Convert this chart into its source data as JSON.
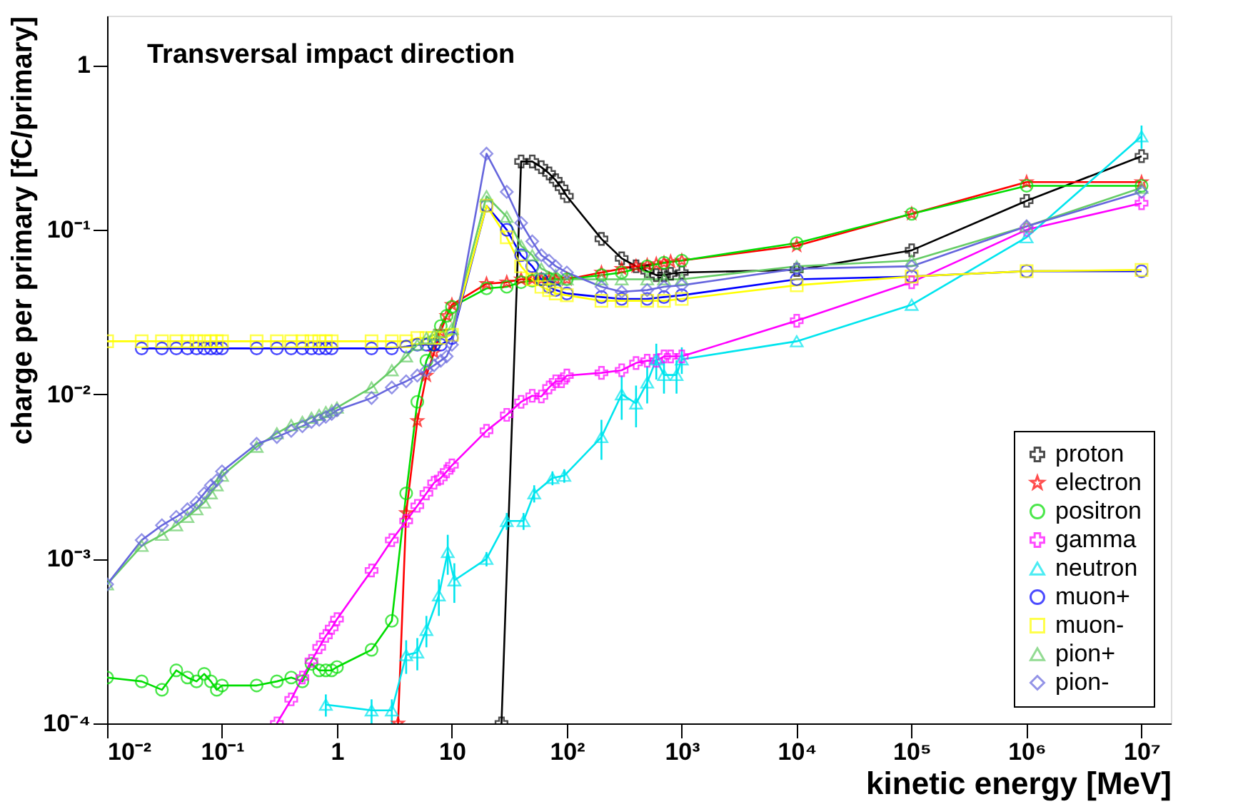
{
  "chart_data": {
    "type": "line",
    "xlabel": "kinetic energy [MeV]",
    "ylabel": "charge per primary [fC/primary]",
    "log": "xy",
    "grid": false,
    "legend": "bottom right",
    "annotations": [
      "Transversal impact direction"
    ],
    "xlim": [
      0.01,
      18000000
    ],
    "ylim": [
      0.0001,
      2
    ],
    "xticks": [
      {
        "value": 0.01,
        "label": "10⁻²"
      },
      {
        "value": 0.1,
        "label": "10⁻¹"
      },
      1,
      10,
      {
        "value": 100,
        "label": "10²"
      },
      {
        "value": 1000,
        "label": "10³"
      },
      {
        "value": 10000,
        "label": "10⁴"
      },
      {
        "value": 100000,
        "label": "10⁵"
      },
      {
        "value": 1000000,
        "label": "10⁶"
      },
      {
        "value": 10000000,
        "label": "10⁷"
      }
    ],
    "yticks": [
      {
        "value": 0.0001,
        "label": "10⁻⁴"
      },
      {
        "value": 0.001,
        "label": "10⁻³"
      },
      {
        "value": 0.01,
        "label": "10⁻²"
      },
      {
        "value": 0.1,
        "label": "10⁻¹"
      },
      1
    ],
    "series": [
      {
        "name": "proton",
        "color": "#000000",
        "marker": "cross",
        "x": [
          27,
          40,
          50,
          60,
          70,
          80,
          90,
          100,
          200,
          300,
          400,
          500,
          600,
          700,
          800,
          1000,
          10000,
          100000,
          1000000,
          10000000
        ],
        "values": [
          0.0001,
          0.26,
          0.26,
          0.24,
          0.22,
          0.2,
          0.18,
          0.16,
          0.088,
          0.067,
          0.06,
          0.056,
          0.053,
          0.053,
          0.054,
          0.055,
          0.057,
          0.075,
          0.15,
          0.28
        ]
      },
      {
        "name": "electron",
        "color": "#ff0000",
        "marker": "star",
        "x": [
          3.4,
          4,
          5,
          6,
          7,
          8,
          9,
          10,
          20,
          30,
          40,
          50,
          60,
          70,
          80,
          100,
          200,
          300,
          400,
          500,
          600,
          700,
          800,
          1000,
          10000,
          100000,
          1000000,
          10000000
        ],
        "values": [
          0.0001,
          0.0019,
          0.0069,
          0.013,
          0.018,
          0.024,
          0.03,
          0.035,
          0.047,
          0.048,
          0.05,
          0.05,
          0.05,
          0.05,
          0.05,
          0.05,
          0.055,
          0.058,
          0.06,
          0.061,
          0.062,
          0.063,
          0.064,
          0.065,
          0.08,
          0.125,
          0.195,
          0.195
        ]
      },
      {
        "name": "positron",
        "color": "#00dd00",
        "marker": "circle",
        "x": [
          0.01,
          0.02,
          0.03,
          0.04,
          0.05,
          0.06,
          0.07,
          0.08,
          0.09,
          0.1,
          0.2,
          0.3,
          0.4,
          0.5,
          0.6,
          0.7,
          0.8,
          0.9,
          1,
          2,
          3,
          4,
          5,
          6,
          7,
          8,
          9,
          10,
          20,
          30,
          40,
          50,
          60,
          70,
          80,
          100,
          200,
          300,
          500,
          700,
          1000,
          10000,
          100000,
          1000000,
          10000000
        ],
        "values": [
          0.00019,
          0.00018,
          0.00016,
          0.00021,
          0.00019,
          0.00018,
          0.0002,
          0.00018,
          0.00016,
          0.00017,
          0.00017,
          0.00018,
          0.00019,
          0.00018,
          0.00023,
          0.00021,
          0.00021,
          0.00021,
          0.00022,
          0.00028,
          0.00042,
          0.0025,
          0.009,
          0.016,
          0.02,
          0.026,
          0.03,
          0.034,
          0.044,
          0.045,
          0.048,
          0.049,
          0.05,
          0.05,
          0.05,
          0.05,
          0.053,
          0.055,
          0.06,
          0.063,
          0.065,
          0.083,
          0.125,
          0.185,
          0.185
        ]
      },
      {
        "name": "gamma",
        "color": "#ff00ff",
        "marker": "cross",
        "x": [
          0.3,
          0.4,
          0.5,
          0.6,
          0.7,
          0.8,
          0.9,
          1,
          2,
          3,
          4,
          5,
          6,
          7,
          8,
          9,
          10,
          20,
          30,
          40,
          50,
          60,
          70,
          80,
          90,
          100,
          200,
          300,
          400,
          500,
          600,
          700,
          800,
          1000,
          10000,
          100000,
          1000000,
          10000000
        ],
        "values": [
          0.0001,
          0.00014,
          0.00019,
          0.00024,
          0.00029,
          0.00034,
          0.00038,
          0.00043,
          0.00085,
          0.0013,
          0.0017,
          0.0021,
          0.0025,
          0.0029,
          0.0031,
          0.0034,
          0.0037,
          0.006,
          0.0075,
          0.009,
          0.0098,
          0.0097,
          0.011,
          0.012,
          0.012,
          0.013,
          0.0135,
          0.014,
          0.0155,
          0.016,
          0.016,
          0.017,
          0.017,
          0.017,
          0.028,
          0.048,
          0.1,
          0.145
        ]
      },
      {
        "name": "neutron",
        "color": "#00e5ee",
        "marker": "triangle",
        "x": [
          0.8,
          2,
          3,
          4,
          5,
          6,
          7.7,
          9.2,
          10.5,
          20,
          30,
          42,
          52,
          75,
          95,
          200,
          300,
          400,
          500,
          600,
          700,
          900,
          1000,
          10000,
          100000,
          1000000,
          10000000
        ],
        "values": [
          0.00013,
          0.00012,
          0.00012,
          0.00026,
          0.00027,
          0.00037,
          0.0006,
          0.0011,
          0.00074,
          0.001,
          0.0017,
          0.0017,
          0.0025,
          0.0031,
          0.0032,
          0.0055,
          0.01,
          0.0088,
          0.0118,
          0.0163,
          0.0131,
          0.0131,
          0.0163,
          0.021,
          0.035,
          0.09,
          0.37
        ],
        "errors": [
          2e-05,
          2e-05,
          2e-05,
          6e-05,
          6e-05,
          8e-05,
          0.00015,
          0.0003,
          0.0002,
          0.0001,
          0.0002,
          0.0002,
          0.0003,
          0.0003,
          0.0003,
          0.0015,
          0.003,
          0.0025,
          0.003,
          0.004,
          0.003,
          0.003,
          0.003,
          null,
          null,
          null,
          0.06
        ]
      },
      {
        "name": "muon+",
        "color": "#0000ff",
        "marker": "circle",
        "x": [
          0.02,
          0.03,
          0.04,
          0.05,
          0.06,
          0.07,
          0.08,
          0.09,
          0.1,
          0.2,
          0.3,
          0.4,
          0.5,
          0.6,
          0.7,
          0.8,
          0.9,
          2,
          3,
          4,
          5,
          6,
          7,
          8,
          10,
          20,
          30,
          40,
          50,
          60,
          70,
          80,
          100,
          200,
          300,
          500,
          700,
          1000,
          10000,
          100000,
          1000000,
          10000000
        ],
        "values": [
          0.019,
          0.019,
          0.019,
          0.019,
          0.019,
          0.019,
          0.019,
          0.019,
          0.019,
          0.019,
          0.019,
          0.019,
          0.019,
          0.019,
          0.019,
          0.019,
          0.019,
          0.019,
          0.019,
          0.0195,
          0.02,
          0.02,
          0.02,
          0.02,
          0.022,
          0.14,
          0.1,
          0.07,
          0.06,
          0.05,
          0.045,
          0.043,
          0.041,
          0.039,
          0.038,
          0.038,
          0.039,
          0.04,
          0.05,
          0.052,
          0.056,
          0.056
        ]
      },
      {
        "name": "muon-",
        "color": "#ffff00",
        "marker": "square",
        "x": [
          0.01,
          0.02,
          0.03,
          0.04,
          0.05,
          0.06,
          0.07,
          0.08,
          0.09,
          0.1,
          0.2,
          0.3,
          0.4,
          0.5,
          0.6,
          0.7,
          0.8,
          0.9,
          2,
          3,
          4,
          5,
          6,
          7,
          8,
          10,
          20,
          30,
          40,
          50,
          60,
          70,
          80,
          100,
          200,
          300,
          500,
          700,
          1000,
          10000,
          100000,
          1000000,
          10000000
        ],
        "values": [
          0.021,
          0.021,
          0.021,
          0.021,
          0.021,
          0.021,
          0.021,
          0.021,
          0.021,
          0.021,
          0.021,
          0.021,
          0.021,
          0.021,
          0.021,
          0.021,
          0.021,
          0.021,
          0.021,
          0.021,
          0.021,
          0.022,
          0.022,
          0.022,
          0.022,
          0.023,
          0.14,
          0.09,
          0.06,
          0.05,
          0.045,
          0.043,
          0.041,
          0.04,
          0.037,
          0.037,
          0.037,
          0.037,
          0.038,
          0.046,
          0.052,
          0.056,
          0.057
        ]
      },
      {
        "name": "pion+",
        "color": "#66cc66",
        "marker": "triangle",
        "x": [
          0.01,
          0.02,
          0.03,
          0.04,
          0.05,
          0.06,
          0.07,
          0.08,
          0.09,
          0.1,
          0.2,
          0.3,
          0.4,
          0.5,
          0.6,
          0.7,
          0.8,
          0.9,
          1,
          2,
          3,
          4,
          5,
          6,
          7,
          8,
          10,
          20,
          30,
          40,
          50,
          60,
          80,
          100,
          200,
          300,
          500,
          700,
          1000,
          10000,
          100000,
          1000000,
          10000000
        ],
        "values": [
          0.0007,
          0.0012,
          0.0014,
          0.0016,
          0.0018,
          0.002,
          0.0022,
          0.0025,
          0.0028,
          0.0032,
          0.0048,
          0.0058,
          0.0065,
          0.0068,
          0.0072,
          0.0075,
          0.0078,
          0.008,
          0.0083,
          0.011,
          0.014,
          0.017,
          0.02,
          0.022,
          0.023,
          0.024,
          0.025,
          0.16,
          0.12,
          0.08,
          0.07,
          0.058,
          0.053,
          0.05,
          0.05,
          0.05,
          0.05,
          0.05,
          0.05,
          0.06,
          0.065,
          0.105,
          0.18
        ]
      },
      {
        "name": "pion-",
        "color": "#6666dd",
        "marker": "diamond",
        "x": [
          0.01,
          0.02,
          0.03,
          0.04,
          0.05,
          0.06,
          0.07,
          0.08,
          0.09,
          0.1,
          0.2,
          0.3,
          0.4,
          0.5,
          0.6,
          0.7,
          0.8,
          0.9,
          1,
          2,
          3,
          4,
          5,
          6,
          7,
          8,
          9,
          10,
          20,
          30,
          40,
          50,
          60,
          70,
          80,
          100,
          200,
          300,
          500,
          700,
          1000,
          10000,
          100000,
          1000000,
          10000000
        ],
        "values": [
          0.0007,
          0.0013,
          0.0016,
          0.0018,
          0.002,
          0.0022,
          0.0025,
          0.0028,
          0.003,
          0.0034,
          0.005,
          0.0055,
          0.006,
          0.0064,
          0.0068,
          0.007,
          0.0073,
          0.0076,
          0.008,
          0.0095,
          0.011,
          0.012,
          0.013,
          0.014,
          0.015,
          0.016,
          0.017,
          0.02,
          0.29,
          0.17,
          0.11,
          0.085,
          0.07,
          0.065,
          0.06,
          0.055,
          0.045,
          0.042,
          0.043,
          0.045,
          0.046,
          0.058,
          0.06,
          0.105,
          0.17
        ]
      }
    ]
  }
}
